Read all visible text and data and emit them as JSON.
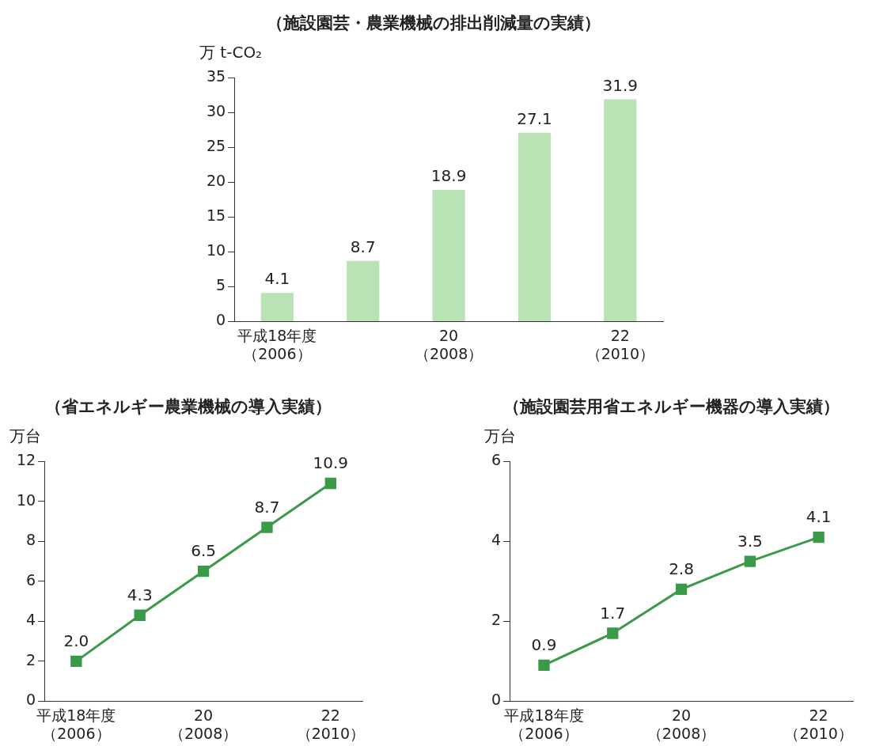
{
  "chart_data": [
    {
      "type": "bar",
      "title": "（施設園芸・農業機械の排出削減量の実績）",
      "ylabel": "万 t-CO₂",
      "categories": [
        "平成18年度（2006）",
        null,
        "20（2008）",
        null,
        "22（2010）"
      ],
      "values": [
        4.1,
        8.7,
        18.9,
        27.1,
        31.9
      ],
      "value_labels": [
        "4.1",
        "8.7",
        "18.9",
        "27.1",
        "31.9"
      ],
      "color": "#b9e3b4",
      "ylim": [
        0,
        35
      ],
      "yticks": [
        0,
        5,
        10,
        15,
        20,
        25,
        30,
        35
      ],
      "grid": false
    },
    {
      "type": "line",
      "title": "（省エネルギー農業機械の導入実績）",
      "ylabel": "万台",
      "categories": [
        "平成18年度（2006）",
        null,
        "20（2008）",
        null,
        "22（2010）"
      ],
      "values": [
        2.0,
        4.3,
        6.5,
        8.7,
        10.9
      ],
      "value_labels": [
        "2.0",
        "4.3",
        "6.5",
        "8.7",
        "10.9"
      ],
      "color": "#3a9a48",
      "marker": "square",
      "ylim": [
        0,
        12
      ],
      "yticks": [
        0,
        2,
        4,
        6,
        8,
        10,
        12
      ],
      "grid": false
    },
    {
      "type": "line",
      "title": "（施設園芸用省エネルギー機器の導入実績）",
      "ylabel": "万台",
      "categories": [
        "平成18年度（2006）",
        null,
        "20（2008）",
        null,
        "22（2010）"
      ],
      "values": [
        0.9,
        1.7,
        2.8,
        3.5,
        4.1
      ],
      "value_labels": [
        "0.9",
        "1.7",
        "2.8",
        "3.5",
        "4.1"
      ],
      "color": "#3a9a48",
      "marker": "square",
      "ylim": [
        0,
        6
      ],
      "yticks": [
        0,
        2,
        4,
        6
      ],
      "grid": false
    }
  ]
}
